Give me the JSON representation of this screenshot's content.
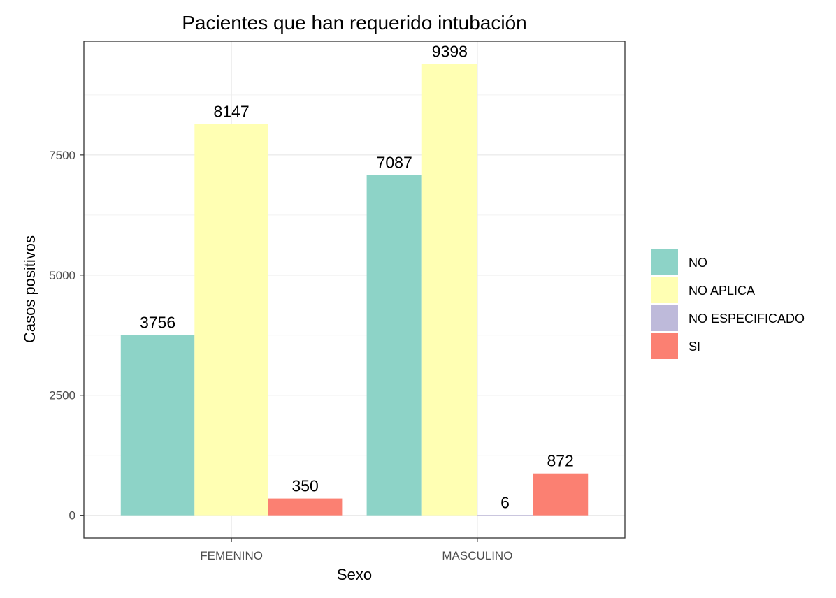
{
  "chart_data": {
    "type": "bar",
    "title": "Pacientes que han requerido intubación",
    "xlabel": "Sexo",
    "ylabel": "Casos positivos",
    "categories": [
      "FEMENINO",
      "MASCULINO"
    ],
    "series": [
      {
        "name": "NO",
        "color": "#8dd3c7",
        "values": [
          3756,
          7087
        ]
      },
      {
        "name": "NO APLICA",
        "color": "#ffffb3",
        "values": [
          8147,
          9398
        ]
      },
      {
        "name": "NO ESPECIFICADO",
        "color": "#bebada",
        "values": [
          null,
          6
        ]
      },
      {
        "name": "SI",
        "color": "#fb8072",
        "values": [
          350,
          872
        ]
      }
    ],
    "yticks": [
      0,
      2500,
      5000,
      7500
    ],
    "ylim": [
      -470,
      9868
    ],
    "grid": true,
    "legend_position": "right"
  }
}
